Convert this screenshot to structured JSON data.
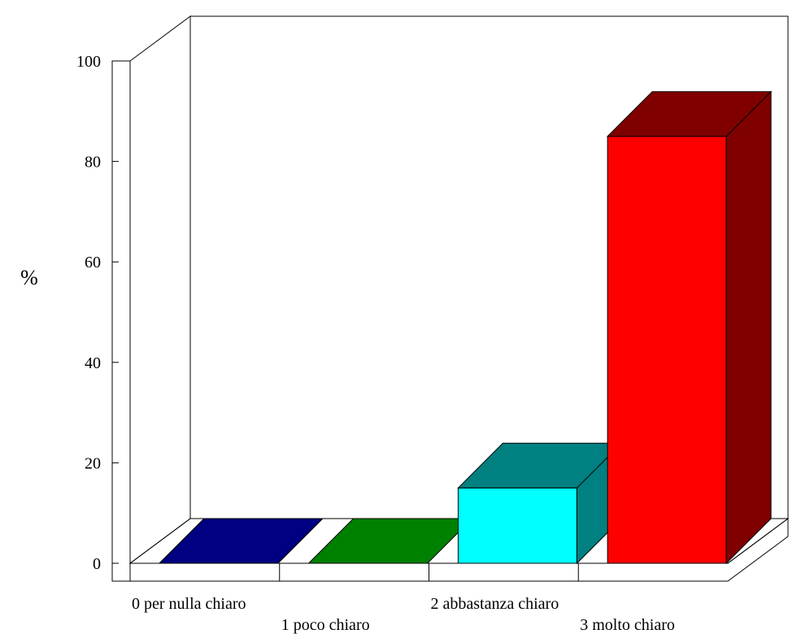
{
  "chart_data": {
    "type": "bar",
    "title": "",
    "xlabel": "",
    "ylabel": "%",
    "ylim": [
      0,
      100
    ],
    "yticks": [
      0,
      20,
      40,
      60,
      80,
      100
    ],
    "categories": [
      "0 per nulla chiaro",
      "1 poco chiaro",
      "2 abbastanza chiaro",
      "3 molto chiaro"
    ],
    "values": [
      0,
      0,
      15,
      85
    ],
    "bar_colors": [
      {
        "front": "#000080",
        "side": "#000080",
        "top": "#000080"
      },
      {
        "front": "#008000",
        "side": "#008000",
        "top": "#008000"
      },
      {
        "front": "#00ffff",
        "side": "#008080",
        "top": "#008080"
      },
      {
        "front": "#ff0000",
        "side": "#800000",
        "top": "#800000"
      }
    ],
    "grid": false,
    "legend": "none",
    "style": "3d"
  }
}
